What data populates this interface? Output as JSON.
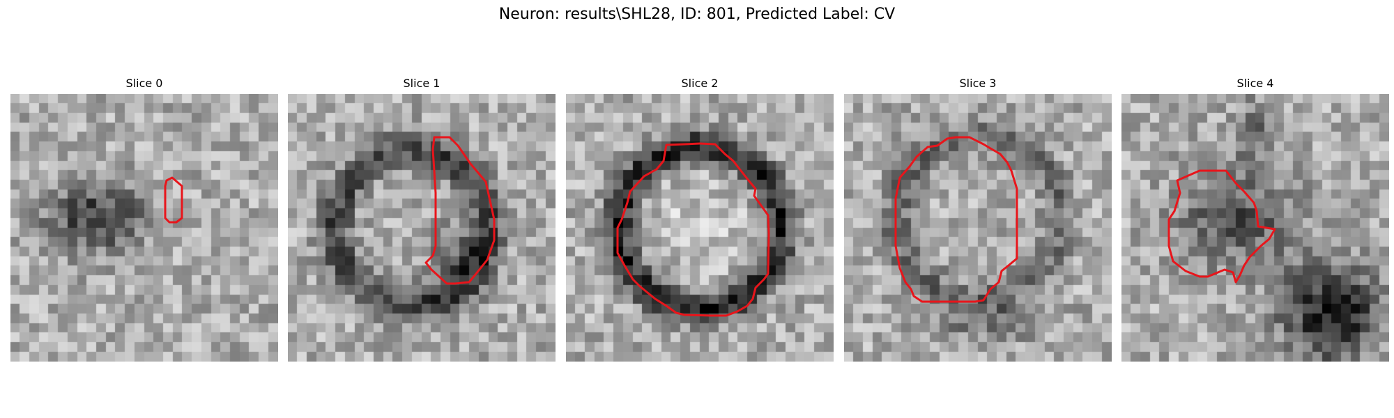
{
  "figure": {
    "title": "Neuron: results\\SHL28, ID: 801, Predicted Label: CV",
    "colors": {
      "contour": "#e8151b",
      "background": "#ffffff"
    }
  },
  "panels": [
    {
      "title": "Slice 0"
    },
    {
      "title": "Slice 1"
    },
    {
      "title": "Slice 2"
    },
    {
      "title": "Slice 3"
    },
    {
      "title": "Slice 4"
    }
  ]
}
